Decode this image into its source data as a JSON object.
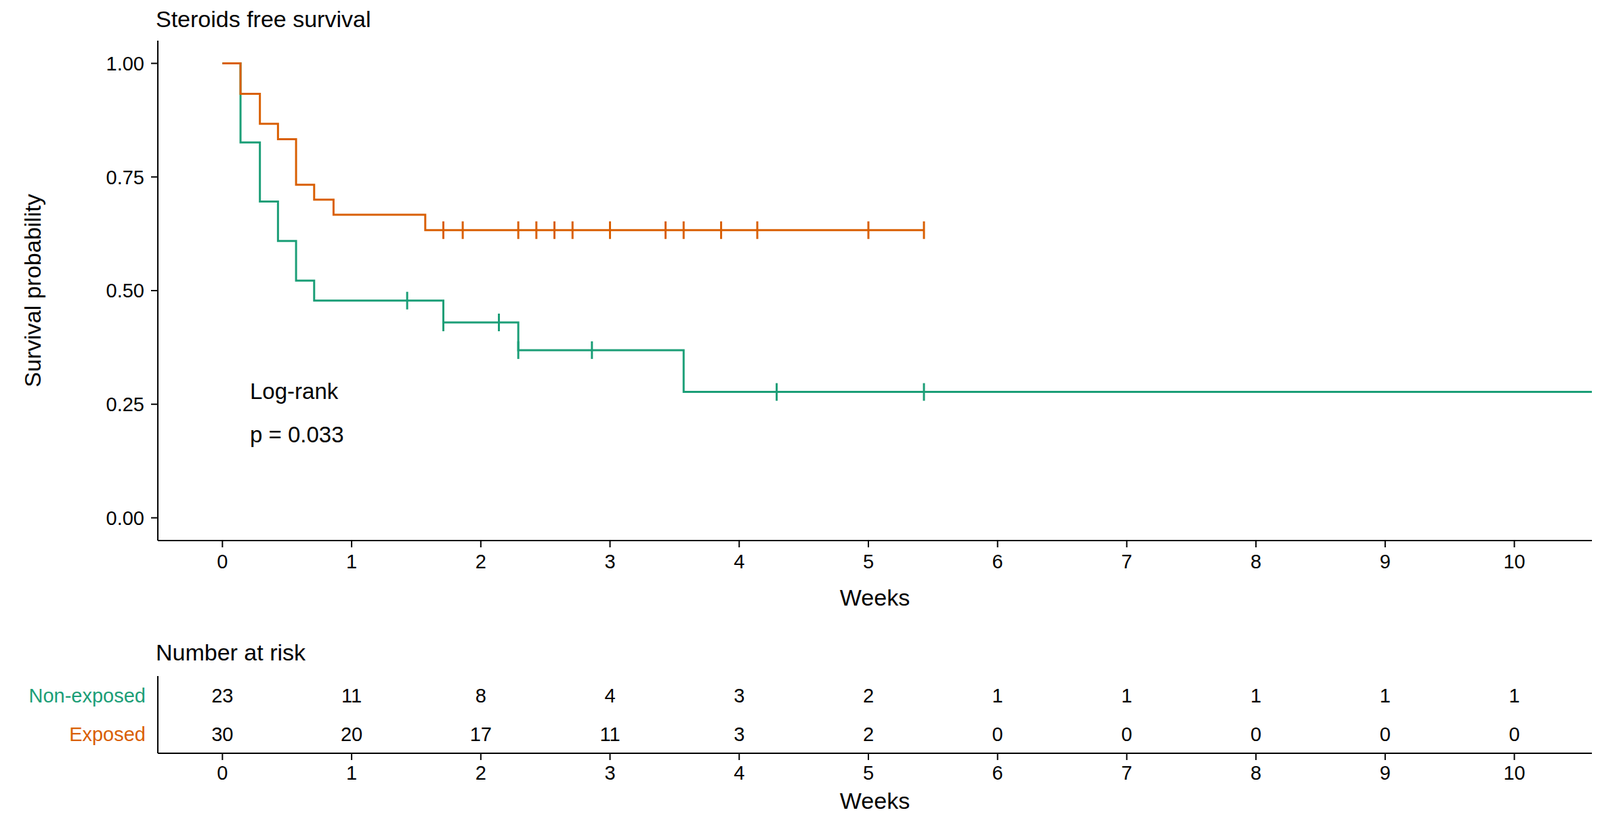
{
  "chart_data": {
    "type": "step",
    "title": "Steroids free survival",
    "x_label": "Weeks",
    "y_label": "Survival probability",
    "annotation": [
      "Log-rank",
      "p = 0.033"
    ],
    "xlim": [
      -0.5,
      10.6
    ],
    "xticks": [
      0,
      1,
      2,
      3,
      4,
      5,
      6,
      7,
      8,
      9,
      10
    ],
    "ylim": [
      -0.05,
      1.05
    ],
    "yticks": [
      {
        "value": 0,
        "label": "0.00"
      },
      0.25,
      {
        "value": 0.5,
        "label": "0.50"
      },
      0.75,
      {
        "value": 1,
        "label": "1.00"
      }
    ],
    "series": [
      {
        "name": "Non-exposed",
        "color": "#1b9e77",
        "x": [
          0,
          0.14,
          0.29,
          0.43,
          0.57,
          0.71,
          1.71,
          2.29,
          3.57,
          10.6
        ],
        "values": [
          1,
          0.826,
          0.696,
          0.609,
          0.522,
          0.478,
          0.43,
          0.369,
          0.277,
          0.277
        ],
        "censored": [
          1.43,
          1.71,
          2.14,
          2.29,
          2.86,
          4.29,
          5.43
        ],
        "at_risk": [
          23,
          11,
          8,
          4,
          3,
          2,
          1,
          1,
          1,
          1,
          1
        ]
      },
      {
        "name": "Exposed",
        "color": "#d95f02",
        "x": [
          0,
          0.14,
          0.29,
          0.43,
          0.57,
          0.71,
          0.86,
          1.57,
          5.43
        ],
        "values": [
          1,
          0.933,
          0.867,
          0.833,
          0.733,
          0.7,
          0.667,
          0.633,
          0.633
        ],
        "censored": [
          1.71,
          1.86,
          2.29,
          2.43,
          2.57,
          2.71,
          3.0,
          3.43,
          3.57,
          3.86,
          4.14,
          5.0,
          5.43
        ],
        "at_risk": [
          30,
          20,
          17,
          11,
          3,
          2,
          0,
          0,
          0,
          0,
          0
        ]
      }
    ],
    "risk_table": {
      "title": "Number at risk",
      "x_label": "Weeks",
      "x": [
        0,
        1,
        2,
        3,
        4,
        5,
        6,
        7,
        8,
        9,
        10
      ]
    }
  }
}
